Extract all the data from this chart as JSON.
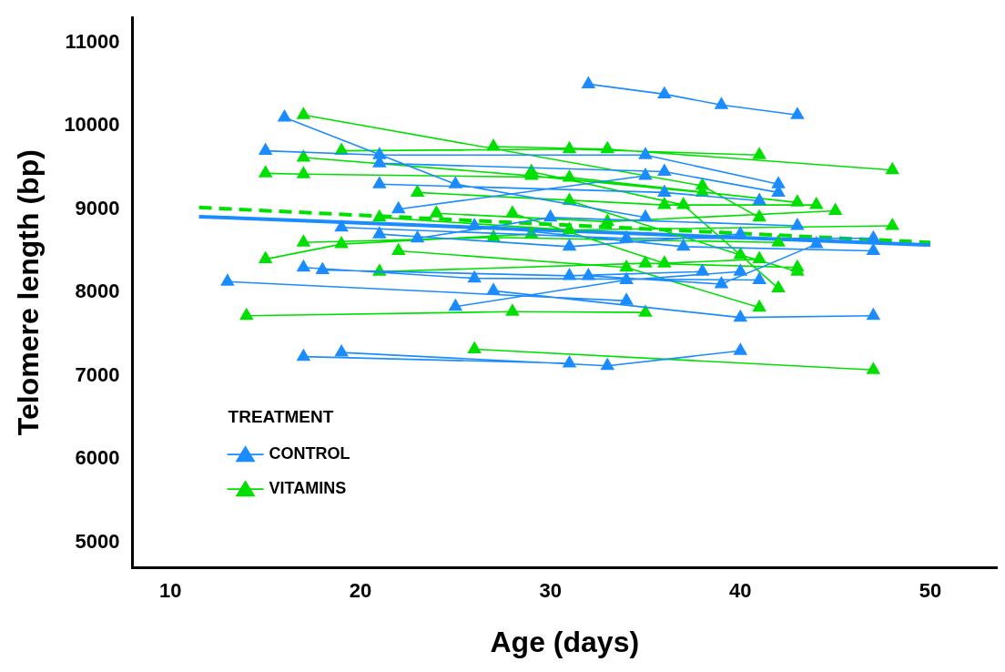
{
  "chart_data": {
    "type": "line",
    "xlabel": "Age (days)",
    "ylabel": "Telomere length (bp)",
    "legend_title": "TREATMENT",
    "legend": "bottom left",
    "grid": false,
    "marker": "triangle",
    "line_style": "solid",
    "xlim": [
      8,
      53.5
    ],
    "xticks": [
      10,
      20,
      30,
      40,
      50
    ],
    "ylim": [
      4700,
      11300
    ],
    "yticks": [
      5000,
      6000,
      7000,
      8000,
      9000,
      10000,
      11000
    ],
    "series": [
      {
        "name": "CONTROL",
        "color": "#1a8cff",
        "x": [
          32,
          36,
          39,
          43,
          null,
          16,
          25,
          35,
          null,
          15,
          21,
          35,
          42,
          null,
          21,
          36,
          42,
          null,
          21,
          36,
          41,
          null,
          22,
          35,
          null,
          19,
          34,
          47,
          null,
          23,
          30,
          43,
          null,
          21,
          31,
          40,
          null,
          18,
          31,
          38,
          null,
          17,
          26,
          41,
          null,
          13,
          34,
          null,
          25,
          34,
          40,
          null,
          27,
          40,
          47,
          null,
          17,
          31,
          null,
          19,
          33,
          40,
          null,
          26,
          37,
          47,
          null,
          32,
          39,
          44
        ],
        "values": [
          10500,
          10380,
          10250,
          10130,
          null,
          10100,
          9300,
          8900,
          null,
          9700,
          9650,
          9650,
          9300,
          null,
          9550,
          9450,
          9200,
          null,
          9300,
          9200,
          9100,
          null,
          9000,
          9400,
          null,
          8780,
          8650,
          8650,
          null,
          8650,
          8900,
          8800,
          null,
          8700,
          8550,
          8700,
          null,
          8270,
          8200,
          8250,
          null,
          8300,
          8170,
          8150,
          null,
          8130,
          7900,
          null,
          7830,
          8150,
          8250,
          null,
          8020,
          7700,
          7720,
          null,
          7230,
          7150,
          null,
          7280,
          7120,
          7300,
          null,
          8800,
          8550,
          8500,
          null,
          8200,
          8100,
          8580
        ]
      },
      {
        "name": "VITAMINS",
        "color": "#00e000",
        "x": [
          17,
          38,
          41,
          null,
          19,
          31,
          41,
          null,
          27,
          33,
          48,
          null,
          17,
          29,
          38,
          null,
          15,
          17,
          31,
          43,
          null,
          23,
          36,
          44,
          null,
          24,
          33,
          45,
          null,
          15,
          19,
          29,
          null,
          17,
          27,
          42,
          null,
          21,
          31,
          48,
          null,
          22,
          34,
          41,
          null,
          21,
          35,
          43,
          null,
          14,
          28,
          35,
          null,
          26,
          47,
          null,
          29,
          37,
          42,
          null,
          31,
          40,
          43,
          null,
          28,
          36,
          41
        ],
        "values": [
          10130,
          9280,
          8900,
          null,
          9700,
          9720,
          9650,
          null,
          9750,
          9720,
          9470,
          null,
          9620,
          9400,
          9200,
          null,
          9430,
          9420,
          9380,
          9080,
          null,
          9200,
          9050,
          9050,
          null,
          8950,
          8850,
          8980,
          null,
          8400,
          8580,
          8700,
          null,
          8600,
          8660,
          8600,
          null,
          8900,
          8750,
          8800,
          null,
          8500,
          8300,
          7820,
          null,
          8250,
          8350,
          8300,
          null,
          7720,
          7770,
          7760,
          null,
          7320,
          7070,
          null,
          9450,
          9050,
          8050,
          null,
          9100,
          8450,
          8250,
          null,
          8950,
          8350,
          8400
        ]
      },
      {
        "type": "line",
        "color": "#1a8cff",
        "marker": "none",
        "line_style": "solid",
        "x": [
          11.5,
          50
        ],
        "values": [
          8910,
          8570
        ]
      },
      {
        "type": "line",
        "color": "#00e000",
        "marker": "none",
        "line_style": "dashed",
        "x": [
          11.5,
          50
        ],
        "values": [
          9020,
          8600
        ]
      }
    ]
  }
}
